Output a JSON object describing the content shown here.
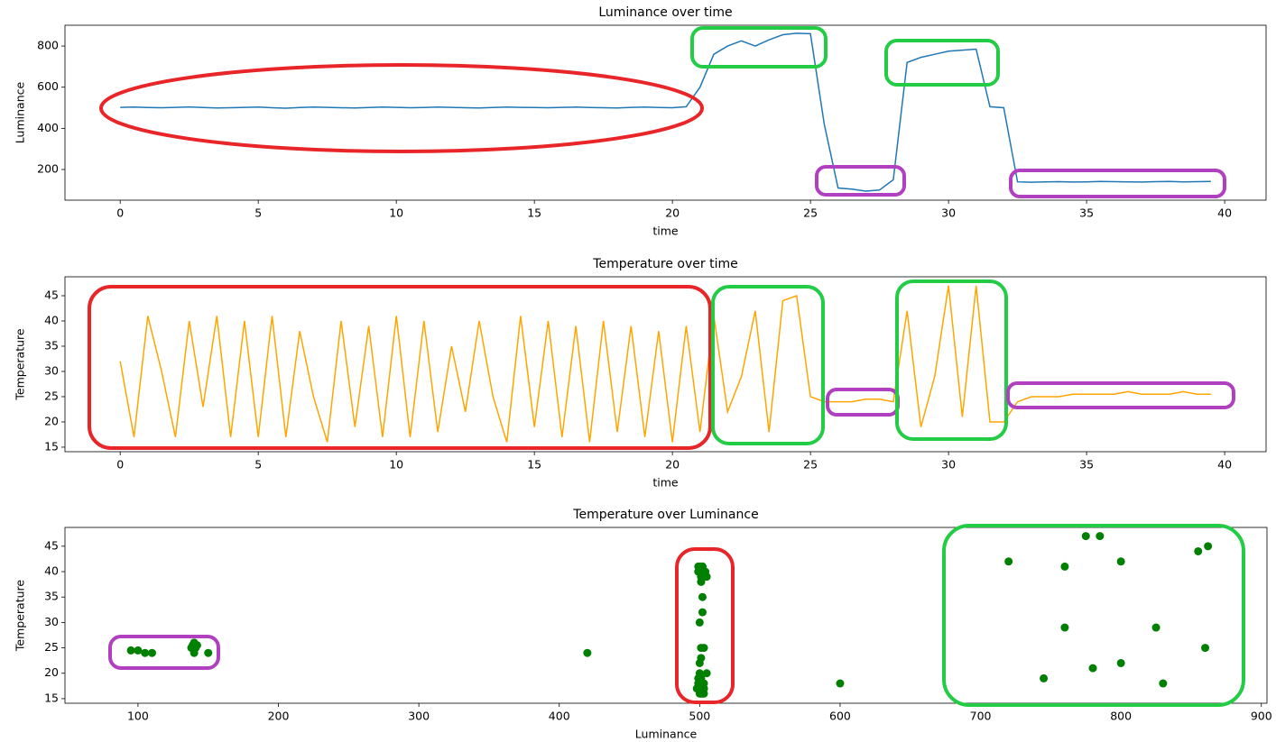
{
  "chart_data": [
    {
      "type": "line",
      "title": "Luminance over time",
      "xlabel": "time",
      "ylabel": "Luminance",
      "color": "#1f77b4",
      "x": [
        0,
        0.5,
        1,
        1.5,
        2,
        2.5,
        3,
        3.5,
        4,
        4.5,
        5,
        5.5,
        6,
        6.5,
        7,
        7.5,
        8,
        8.5,
        9,
        9.5,
        10,
        10.5,
        11,
        11.5,
        12,
        12.5,
        13,
        13.5,
        14,
        14.5,
        15,
        15.5,
        16,
        16.5,
        17,
        17.5,
        18,
        18.5,
        19,
        19.5,
        20,
        20.5,
        21,
        21.5,
        22,
        22.5,
        23,
        23.5,
        24,
        24.5,
        25,
        25.5,
        26,
        26.5,
        27,
        27.5,
        28,
        28.5,
        29,
        29.5,
        30,
        30.5,
        31,
        31.5,
        32,
        32.5,
        33,
        33.5,
        34,
        34.5,
        35,
        35.5,
        36,
        36.5,
        37,
        37.5,
        38,
        38.5,
        39,
        39.5
      ],
      "values": [
        502,
        503,
        501,
        500,
        502,
        504,
        501,
        499,
        500,
        502,
        503,
        500,
        498,
        501,
        503,
        502,
        500,
        499,
        501,
        503,
        502,
        500,
        501,
        503,
        502,
        500,
        499,
        501,
        503,
        502,
        501,
        500,
        502,
        503,
        501,
        500,
        499,
        502,
        503,
        501,
        500,
        505,
        600,
        760,
        800,
        825,
        800,
        830,
        855,
        862,
        860,
        420,
        110,
        105,
        95,
        100,
        150,
        720,
        745,
        760,
        775,
        780,
        785,
        505,
        500,
        140,
        138,
        140,
        141,
        139,
        140,
        142,
        141,
        140,
        139,
        141,
        142,
        140,
        141,
        142
      ],
      "xlim": [
        -2,
        41.5
      ],
      "ylim": [
        51,
        901
      ],
      "xticks": [
        0,
        5,
        10,
        15,
        20,
        25,
        30,
        35,
        40
      ],
      "yticks": [
        200,
        400,
        600,
        800
      ]
    },
    {
      "type": "line",
      "title": "Temperature over time",
      "xlabel": "time",
      "ylabel": "Temperature",
      "color": "#ffa500",
      "x": [
        0,
        0.5,
        1,
        1.5,
        2,
        2.5,
        3,
        3.5,
        4,
        4.5,
        5,
        5.5,
        6,
        6.5,
        7,
        7.5,
        8,
        8.5,
        9,
        9.5,
        10,
        10.5,
        11,
        11.5,
        12,
        12.5,
        13,
        13.5,
        14,
        14.5,
        15,
        15.5,
        16,
        16.5,
        17,
        17.5,
        18,
        18.5,
        19,
        19.5,
        20,
        20.5,
        21,
        21.5,
        22,
        22.5,
        23,
        23.5,
        24,
        24.5,
        25,
        25.5,
        26,
        26.5,
        27,
        27.5,
        28,
        28.5,
        29,
        29.5,
        30,
        30.5,
        31,
        31.5,
        32,
        32.5,
        33,
        33.5,
        34,
        34.5,
        35,
        35.5,
        36,
        36.5,
        37,
        37.5,
        38,
        38.5,
        39,
        39.5
      ],
      "values": [
        32,
        17,
        41,
        30,
        17,
        40,
        23,
        41,
        17,
        40,
        17,
        41,
        17,
        38,
        25,
        16,
        40,
        19,
        39,
        17,
        41,
        17,
        40,
        18,
        35,
        22,
        40,
        25,
        16,
        41,
        19,
        40,
        17,
        39,
        16,
        40,
        18,
        39,
        17,
        38,
        16,
        39,
        18,
        41,
        22,
        29,
        42,
        18,
        44,
        45,
        25,
        24,
        24,
        24,
        24.5,
        24.5,
        24,
        42,
        19,
        29,
        47,
        21,
        47,
        20,
        20,
        24,
        25,
        25,
        25,
        25.5,
        25.5,
        25.5,
        25.5,
        26,
        25.5,
        25.5,
        25.5,
        26,
        25.5,
        25.5
      ],
      "xlim": [
        -2,
        41.5
      ],
      "ylim": [
        14.1,
        48.75
      ],
      "xticks": [
        0,
        5,
        10,
        15,
        20,
        25,
        30,
        35,
        40
      ],
      "yticks": [
        15,
        20,
        25,
        30,
        35,
        40,
        45
      ]
    },
    {
      "type": "scatter",
      "title": "Temperature over Luminance",
      "xlabel": "Luminance",
      "ylabel": "Temperature",
      "color": "#008000",
      "x": [
        502,
        503,
        501,
        500,
        502,
        504,
        501,
        499,
        500,
        502,
        503,
        500,
        498,
        501,
        503,
        502,
        500,
        499,
        501,
        503,
        502,
        500,
        501,
        503,
        502,
        500,
        499,
        501,
        503,
        502,
        501,
        500,
        502,
        503,
        501,
        500,
        499,
        502,
        503,
        501,
        500,
        505,
        600,
        760,
        800,
        825,
        800,
        830,
        855,
        862,
        860,
        420,
        110,
        105,
        95,
        100,
        150,
        720,
        745,
        760,
        775,
        780,
        785,
        505,
        500,
        140,
        138,
        140,
        141,
        139,
        140,
        142,
        141,
        140,
        139,
        141,
        142,
        140,
        141,
        142
      ],
      "values": [
        32,
        17,
        41,
        30,
        17,
        40,
        23,
        41,
        17,
        40,
        17,
        41,
        17,
        38,
        25,
        16,
        40,
        19,
        39,
        17,
        41,
        17,
        40,
        18,
        35,
        22,
        40,
        25,
        16,
        41,
        19,
        40,
        17,
        39,
        16,
        40,
        18,
        39,
        17,
        38,
        16,
        39,
        18,
        41,
        22,
        29,
        42,
        18,
        44,
        45,
        25,
        24,
        24,
        24,
        24.5,
        24.5,
        24,
        42,
        19,
        29,
        47,
        21,
        47,
        20,
        20,
        24,
        25,
        25,
        25,
        25.5,
        25.5,
        25.5,
        25.5,
        26,
        25.5,
        25.5,
        25.5,
        26,
        25.5,
        25.5
      ],
      "xlim": [
        48,
        904
      ],
      "ylim": [
        14.1,
        48.7
      ],
      "xticks": [
        100,
        200,
        300,
        400,
        500,
        600,
        700,
        800,
        900
      ],
      "yticks": [
        15,
        20,
        25,
        30,
        35,
        40,
        45
      ]
    }
  ]
}
